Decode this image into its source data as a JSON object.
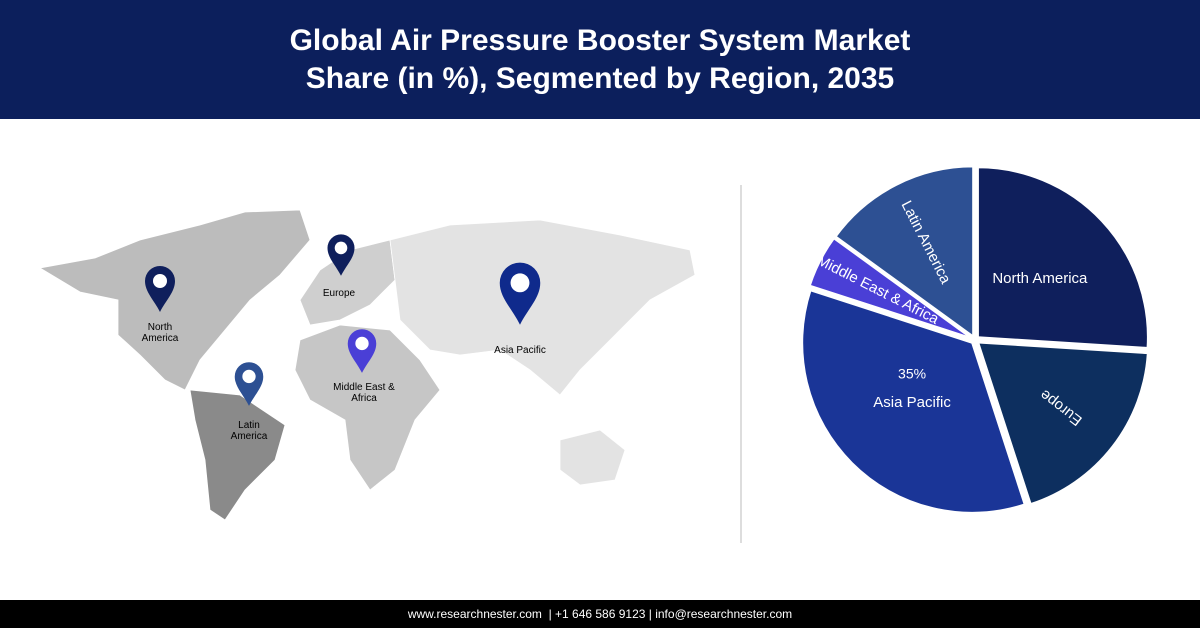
{
  "chart_data": {
    "type": "pie",
    "title": "Global Air Pressure Booster System Market Share (in %), Segmented by Region, 2035",
    "categories": [
      "North America",
      "Europe",
      "Asia Pacific",
      "Middle East & Africa",
      "Latin America"
    ],
    "values": [
      26,
      19,
      35,
      5,
      15
    ],
    "value_labels": [
      null,
      null,
      "35%",
      null,
      null
    ],
    "colors": [
      "#0f1f5c",
      "#0d2f5f",
      "#1a3597",
      "#4a3fd6",
      "#2d5093"
    ]
  },
  "map": {
    "pins": [
      {
        "label": "North America",
        "color": "#0f1f5c"
      },
      {
        "label": "Europe",
        "color": "#0f1f5c"
      },
      {
        "label": "Asia Pacific",
        "color": "#0f2a8c"
      },
      {
        "label": "Middle East & Africa",
        "color": "#4a3fd6"
      },
      {
        "label": "Latin America",
        "color": "#2d5093"
      }
    ]
  },
  "footer": "www.researchnester.com  | +1 646 586 9123 | info@researchnester.com"
}
